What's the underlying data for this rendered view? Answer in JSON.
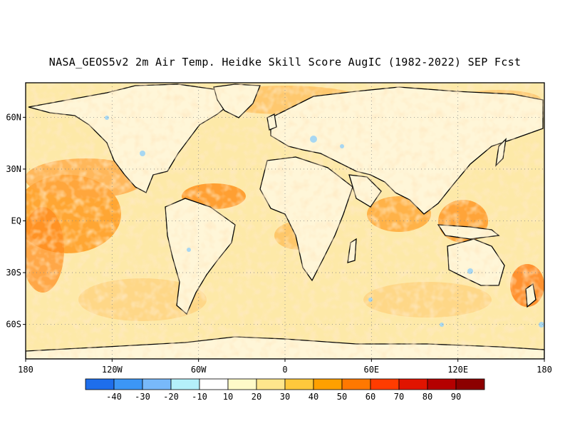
{
  "title": "NASA_GEOS5v2 2m Air Temp. Heidke Skill Score AugIC (1982-2022) SEP Fcst",
  "map": {
    "lon_range": [
      -180,
      180
    ],
    "lat_range": [
      -80,
      80
    ],
    "grid": true,
    "x_ticks": [
      {
        "value": -180,
        "label": "180"
      },
      {
        "value": -120,
        "label": "120W"
      },
      {
        "value": -60,
        "label": "60W"
      },
      {
        "value": 0,
        "label": "0"
      },
      {
        "value": 60,
        "label": "60E"
      },
      {
        "value": 120,
        "label": "120E"
      },
      {
        "value": 180,
        "label": "180"
      }
    ],
    "y_ticks": [
      {
        "value": 60,
        "label": "60N"
      },
      {
        "value": 30,
        "label": "30N"
      },
      {
        "value": 0,
        "label": "EQ"
      },
      {
        "value": -30,
        "label": "30S"
      },
      {
        "value": -60,
        "label": "60S"
      }
    ],
    "ocean_base_color": "#fde9a8",
    "land_base_color": "#fff6d8"
  },
  "colorbar": {
    "labels": [
      "-40",
      "-30",
      "-20",
      "-10",
      "10",
      "20",
      "30",
      "40",
      "50",
      "60",
      "70",
      "80",
      "90"
    ],
    "colors": [
      "#1e6eeb",
      "#3c96f5",
      "#78b9fa",
      "#b4f0fa",
      "#ffffff",
      "#fffac8",
      "#ffe68c",
      "#ffc83c",
      "#ffa000",
      "#ff7800",
      "#ff3c00",
      "#e11400",
      "#b40000",
      "#8c0000"
    ]
  }
}
